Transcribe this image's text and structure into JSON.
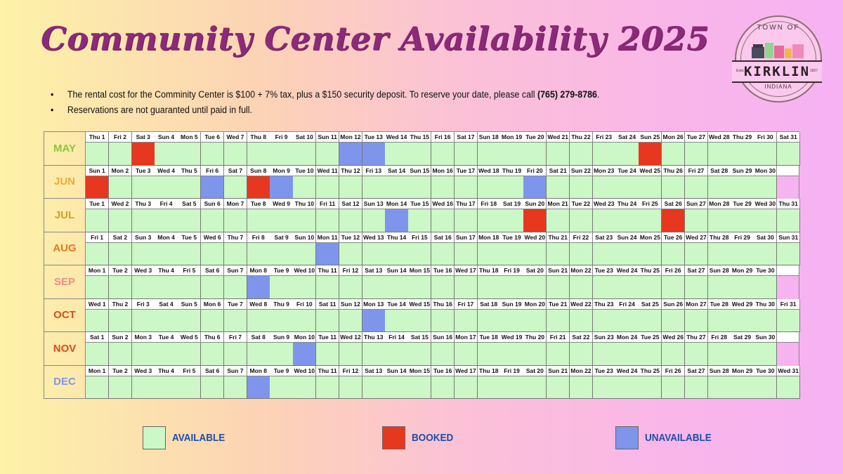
{
  "title": "Community Center Availability 2025",
  "notes": [
    {
      "text": "The rental cost for the Comminity Center is $100 + 7% tax, plus a $150 security deposit. To reserve your date, please call ",
      "phone": "(765) 279-8786",
      "end": "."
    },
    {
      "text": "Reservations are not guaranted until paid in full.",
      "phone": "",
      "end": ""
    }
  ],
  "logo": {
    "top": "TOWN OF",
    "name": "KIRKLIN",
    "state": "INDIANA",
    "est": "Estd.",
    "year": "1837"
  },
  "legend": [
    {
      "label": "AVAILABLE",
      "color": "#ccf7c6"
    },
    {
      "label": "BOOKED",
      "color": "#e8371f"
    },
    {
      "label": "UNAVAILABLE",
      "color": "#7f95ec"
    }
  ],
  "status_colors": {
    "available": "#ccf7c6",
    "booked": "#e8371f",
    "unavailable": "#7f95ec"
  },
  "months": [
    {
      "name": "MAY",
      "color": "#8bc53f",
      "start": 4,
      "days": 31,
      "booked": [
        3,
        25
      ],
      "unavailable": [
        12,
        13
      ]
    },
    {
      "name": "JUN",
      "color": "#f0a838",
      "start": 0,
      "days": 30,
      "booked": [
        1,
        8
      ],
      "unavailable": [
        6,
        9,
        20
      ]
    },
    {
      "name": "JUL",
      "color": "#d4a017",
      "start": 2,
      "days": 31,
      "booked": [
        20,
        26
      ],
      "unavailable": [
        14
      ]
    },
    {
      "name": "AUG",
      "color": "#e07a1a",
      "start": 5,
      "days": 31,
      "booked": [],
      "unavailable": [
        11
      ]
    },
    {
      "name": "SEP",
      "color": "#f08c8c",
      "start": 1,
      "days": 30,
      "booked": [],
      "unavailable": [
        8
      ]
    },
    {
      "name": "OCT",
      "color": "#e0481e",
      "start": 3,
      "days": 31,
      "booked": [],
      "unavailable": [
        13
      ]
    },
    {
      "name": "NOV",
      "color": "#e0481e",
      "start": 6,
      "days": 30,
      "booked": [],
      "unavailable": [
        10
      ]
    },
    {
      "name": "DEC",
      "color": "#7f95ec",
      "start": 1,
      "days": 31,
      "booked": [],
      "unavailable": [
        8
      ]
    }
  ],
  "weekdays": [
    "Sun",
    "Mon",
    "Tue",
    "Wed",
    "Thu",
    "Fri",
    "Sat"
  ]
}
